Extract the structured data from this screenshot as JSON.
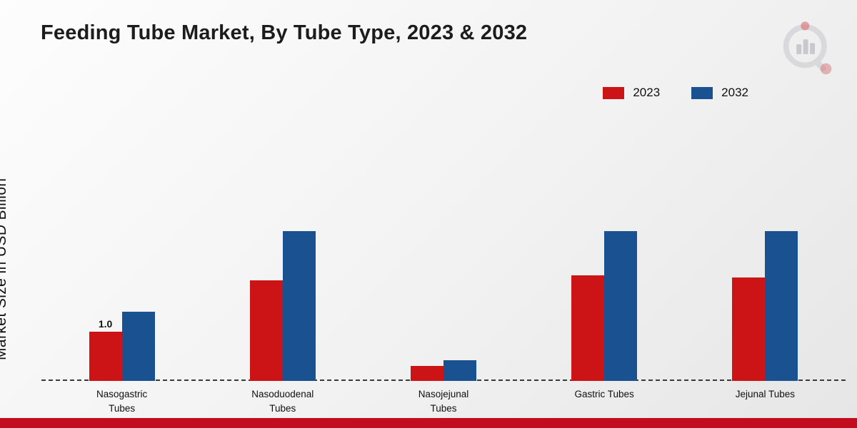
{
  "title": "Feeding Tube Market, By Tube Type, 2023 & 2032",
  "ylabel": "Market Size in USD Billion",
  "colors": {
    "series_2023": "#cc1417",
    "series_2032": "#1a5191",
    "footer_band": "#c30d1e",
    "baseline": "#3a3a3a"
  },
  "chart_data": {
    "type": "bar",
    "title": "Feeding Tube Market, By Tube Type, 2023 & 2032",
    "xlabel": "",
    "ylabel": "Market Size in USD Billion",
    "categories": [
      "Nasogastric Tubes",
      "Nasoduodenal Tubes",
      "Nasojejunal Tubes",
      "Gastric Tubes",
      "Jejunal Tubes"
    ],
    "series": [
      {
        "name": "2023",
        "color": "#cc1417",
        "values": [
          1.0,
          2.05,
          0.3,
          2.15,
          2.1
        ]
      },
      {
        "name": "2032",
        "color": "#1a5191",
        "values": [
          1.4,
          3.05,
          0.42,
          3.05,
          3.05
        ]
      }
    ],
    "annotations": [
      {
        "series": "2023",
        "category": "Nasogastric Tubes",
        "text": "1.0"
      }
    ],
    "ylim": [
      0,
      5.5
    ],
    "grid": false,
    "legend_position": "top-right"
  }
}
